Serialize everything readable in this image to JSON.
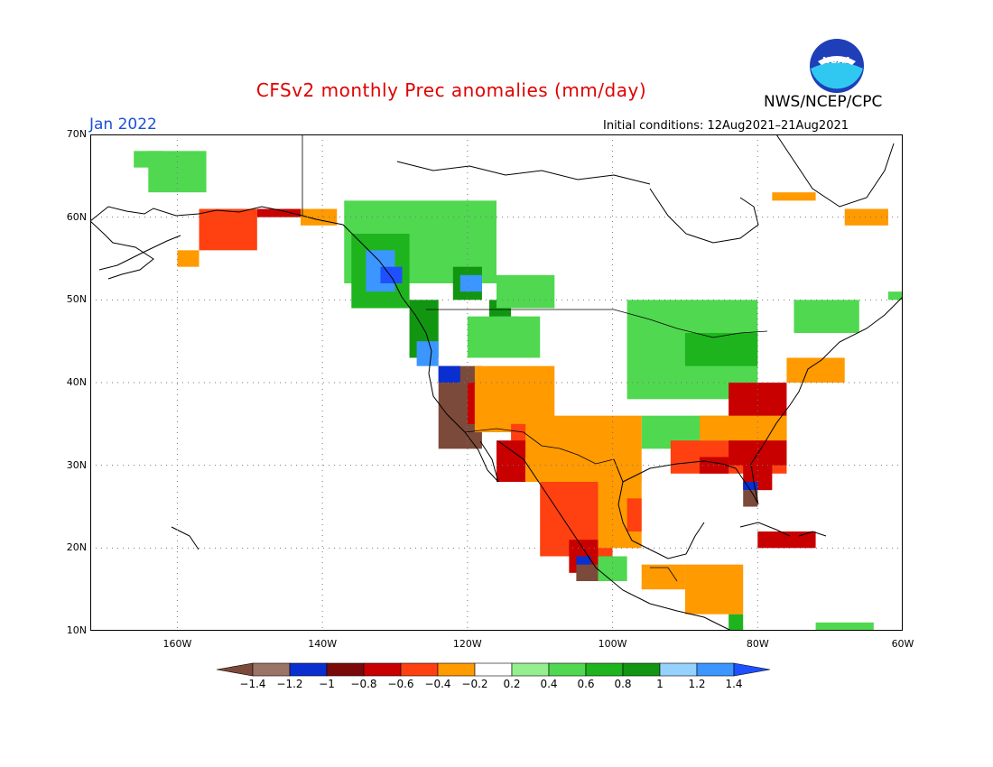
{
  "header": {
    "title": "CFSv2 monthly Prec anomalies (mm/day)",
    "agency": "NWS/NCEP/CPC",
    "month": "Jan 2022",
    "initial_conditions": "Initial conditions: 12Aug2021–21Aug2021",
    "logo_text": "NOAA"
  },
  "map": {
    "lon_range": [
      -172,
      -60
    ],
    "lat_range": [
      10,
      70
    ],
    "gridlines": true,
    "lat_ticks": [
      {
        "value": 70,
        "label": "70N"
      },
      {
        "value": 60,
        "label": "60N"
      },
      {
        "value": 50,
        "label": "50N"
      },
      {
        "value": 40,
        "label": "40N"
      },
      {
        "value": 30,
        "label": "30N"
      },
      {
        "value": 20,
        "label": "20N"
      },
      {
        "value": 10,
        "label": "10N"
      }
    ],
    "lon_ticks": [
      {
        "value": -160,
        "label": "160W"
      },
      {
        "value": -140,
        "label": "140W"
      },
      {
        "value": -120,
        "label": "120W"
      },
      {
        "value": -100,
        "label": "100W"
      },
      {
        "value": -80,
        "label": "80W"
      },
      {
        "value": -60,
        "label": "60W"
      }
    ]
  },
  "colorbar": {
    "labels": [
      "−1.4",
      "−1.2",
      "−1",
      "−0.8",
      "−0.6",
      "−0.4",
      "−0.2",
      "0.2",
      "0.4",
      "0.6",
      "0.8",
      "1",
      "1.2",
      "1.4"
    ],
    "colors": [
      "#7b4a3a",
      "#9a7466",
      "#0a2fd0",
      "#7a0a0a",
      "#c80000",
      "#ff4010",
      "#ff9a00",
      "#ffffff",
      "#96ef8f",
      "#50d850",
      "#1eb41e",
      "#129612",
      "#96d2ff",
      "#3c96ff",
      "#1e50ff"
    ]
  },
  "anomalies": [
    {
      "lon": [
        -164,
        -156
      ],
      "lat": [
        63,
        68
      ],
      "level": 0.4
    },
    {
      "lon": [
        -166,
        -162
      ],
      "lat": [
        66,
        68
      ],
      "level": 0.4
    },
    {
      "lon": [
        -157,
        -149
      ],
      "lat": [
        56,
        61
      ],
      "level": -0.6
    },
    {
      "lon": [
        -149,
        -143
      ],
      "lat": [
        60,
        61
      ],
      "level": -0.8
    },
    {
      "lon": [
        -143,
        -138
      ],
      "lat": [
        59,
        61
      ],
      "level": -0.4
    },
    {
      "lon": [
        -160,
        -157
      ],
      "lat": [
        54,
        56
      ],
      "level": -0.4
    },
    {
      "lon": [
        -137,
        -116
      ],
      "lat": [
        52,
        62
      ],
      "level": 0.4
    },
    {
      "lon": [
        -136,
        -128
      ],
      "lat": [
        49,
        58
      ],
      "level": 0.6
    },
    {
      "lon": [
        -134,
        -130
      ],
      "lat": [
        51,
        56
      ],
      "level": 1.2
    },
    {
      "lon": [
        -132,
        -129
      ],
      "lat": [
        52,
        54
      ],
      "level": 1.4
    },
    {
      "lon": [
        -128,
        -124
      ],
      "lat": [
        43,
        50
      ],
      "level": 0.8
    },
    {
      "lon": [
        -127,
        -124
      ],
      "lat": [
        42,
        45
      ],
      "level": 1.2
    },
    {
      "lon": [
        -122,
        -118
      ],
      "lat": [
        50,
        54
      ],
      "level": 0.8
    },
    {
      "lon": [
        -121,
        -118
      ],
      "lat": [
        51,
        53
      ],
      "level": 1.2
    },
    {
      "lon": [
        -117,
        -114
      ],
      "lat": [
        47,
        50
      ],
      "level": 0.8
    },
    {
      "lon": [
        -116,
        -113
      ],
      "lat": [
        46,
        48
      ],
      "level": 1.2
    },
    {
      "lon": [
        -120,
        -110
      ],
      "lat": [
        43,
        48
      ],
      "level": 0.4
    },
    {
      "lon": [
        -116,
        -108
      ],
      "lat": [
        49,
        53
      ],
      "level": 0.4
    },
    {
      "lon": [
        -98,
        -80
      ],
      "lat": [
        38,
        50
      ],
      "level": 0.4
    },
    {
      "lon": [
        -90,
        -80
      ],
      "lat": [
        42,
        46
      ],
      "level": 0.6
    },
    {
      "lon": [
        -75,
        -66
      ],
      "lat": [
        46,
        50
      ],
      "level": 0.4
    },
    {
      "lon": [
        -62,
        -60
      ],
      "lat": [
        50,
        51
      ],
      "level": 0.4
    },
    {
      "lon": [
        -96,
        -84
      ],
      "lat": [
        32,
        36
      ],
      "level": 0.4
    },
    {
      "lon": [
        -104,
        -98
      ],
      "lat": [
        16,
        19
      ],
      "level": 0.4
    },
    {
      "lon": [
        -84,
        -82
      ],
      "lat": [
        10,
        12
      ],
      "level": 0.6
    },
    {
      "lon": [
        -72,
        -64
      ],
      "lat": [
        10,
        11
      ],
      "level": 0.4
    },
    {
      "lon": [
        -124,
        -118
      ],
      "lat": [
        32,
        42
      ],
      "level": -1.4
    },
    {
      "lon": [
        -124,
        -121
      ],
      "lat": [
        40,
        42
      ],
      "level": -1.2
    },
    {
      "lon": [
        -120,
        -114
      ],
      "lat": [
        35,
        40
      ],
      "level": -0.8
    },
    {
      "lon": [
        -119,
        -108
      ],
      "lat": [
        34,
        42
      ],
      "level": -0.4
    },
    {
      "lon": [
        -114,
        -104
      ],
      "lat": [
        31,
        35
      ],
      "level": -0.6
    },
    {
      "lon": [
        -116,
        -112
      ],
      "lat": [
        28,
        33
      ],
      "level": -0.8
    },
    {
      "lon": [
        -110,
        -100
      ],
      "lat": [
        19,
        28
      ],
      "level": -0.6
    },
    {
      "lon": [
        -106,
        -102
      ],
      "lat": [
        17,
        21
      ],
      "level": -0.8
    },
    {
      "lon": [
        -105,
        -103
      ],
      "lat": [
        17,
        19
      ],
      "level": -1.2
    },
    {
      "lon": [
        -105,
        -102
      ],
      "lat": [
        16,
        18
      ],
      "level": -1.4
    },
    {
      "lon": [
        -102,
        -96
      ],
      "lat": [
        20,
        30
      ],
      "level": -0.4
    },
    {
      "lon": [
        -98,
        -96
      ],
      "lat": [
        22,
        26
      ],
      "level": -0.6
    },
    {
      "lon": [
        -112,
        -96
      ],
      "lat": [
        28,
        36
      ],
      "level": -0.4
    },
    {
      "lon": [
        -92,
        -76
      ],
      "lat": [
        29,
        33
      ],
      "level": -0.6
    },
    {
      "lon": [
        -88,
        -84
      ],
      "lat": [
        29,
        31
      ],
      "level": -0.8
    },
    {
      "lon": [
        -84,
        -76
      ],
      "lat": [
        30,
        40
      ],
      "level": -0.8
    },
    {
      "lon": [
        -82,
        -78
      ],
      "lat": [
        27,
        31
      ],
      "level": -0.8
    },
    {
      "lon": [
        -82,
        -80
      ],
      "lat": [
        25,
        27
      ],
      "level": -1.4
    },
    {
      "lon": [
        -82,
        -80
      ],
      "lat": [
        27,
        28
      ],
      "level": -1.2
    },
    {
      "lon": [
        -76,
        -68
      ],
      "lat": [
        40,
        43
      ],
      "level": -0.4
    },
    {
      "lon": [
        -88,
        -76
      ],
      "lat": [
        33,
        36
      ],
      "level": -0.4
    },
    {
      "lon": [
        -80,
        -72
      ],
      "lat": [
        20,
        22
      ],
      "level": -0.8
    },
    {
      "lon": [
        -90,
        -82
      ],
      "lat": [
        12,
        18
      ],
      "level": -0.4
    },
    {
      "lon": [
        -96,
        -90
      ],
      "lat": [
        15,
        18
      ],
      "level": -0.4
    },
    {
      "lon": [
        -78,
        -72
      ],
      "lat": [
        62,
        63
      ],
      "level": -0.4
    },
    {
      "lon": [
        -68,
        -62
      ],
      "lat": [
        59,
        61
      ],
      "level": -0.4
    }
  ]
}
